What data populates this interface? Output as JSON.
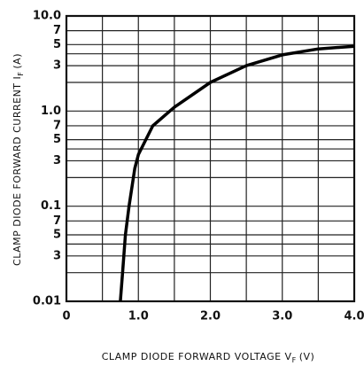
{
  "chart_data": {
    "type": "line",
    "xlabel": "CLAMP DIODE FORWARD VOLTAGE V",
    "xlabel_sub": "F",
    "xlabel_unit": "(V)",
    "ylabel": "CLAMP DIODE FORWARD CURRENT I",
    "ylabel_sub": "F",
    "ylabel_unit": "(A)",
    "x": [
      0.75,
      0.78,
      0.82,
      0.87,
      0.95,
      1.0,
      1.2,
      1.5,
      2.0,
      2.5,
      3.0,
      3.5,
      4.0
    ],
    "y": [
      0.01,
      0.02,
      0.05,
      0.1,
      0.25,
      0.35,
      0.7,
      1.1,
      2.0,
      3.0,
      3.9,
      4.5,
      4.8
    ],
    "color": "#000000",
    "xlim": [
      0,
      4
    ],
    "ylim": [
      0.01,
      10
    ],
    "ylog": true,
    "grid": true,
    "xticks": [
      0,
      {
        "value": 1,
        "label": "1.0"
      },
      {
        "value": 2,
        "label": "2.0"
      },
      {
        "value": 3,
        "label": "3.0"
      },
      {
        "value": 4,
        "label": "4.0"
      }
    ],
    "yticks": [
      {
        "value": 10,
        "label": "10.0"
      },
      7,
      5,
      3,
      {
        "value": 1,
        "label": "1.0"
      },
      {
        "value": 0.7,
        "label": "7"
      },
      {
        "value": 0.5,
        "label": "5"
      },
      {
        "value": 0.3,
        "label": "3"
      },
      0.1,
      {
        "value": 0.07,
        "label": "7"
      },
      {
        "value": 0.05,
        "label": "5"
      },
      {
        "value": 0.03,
        "label": "3"
      },
      0.01
    ],
    "xgrid": [
      0.5,
      1.5,
      2.5,
      3.5
    ],
    "ygrid": [
      4,
      2,
      0.4,
      0.2,
      0.04,
      0.02
    ]
  }
}
